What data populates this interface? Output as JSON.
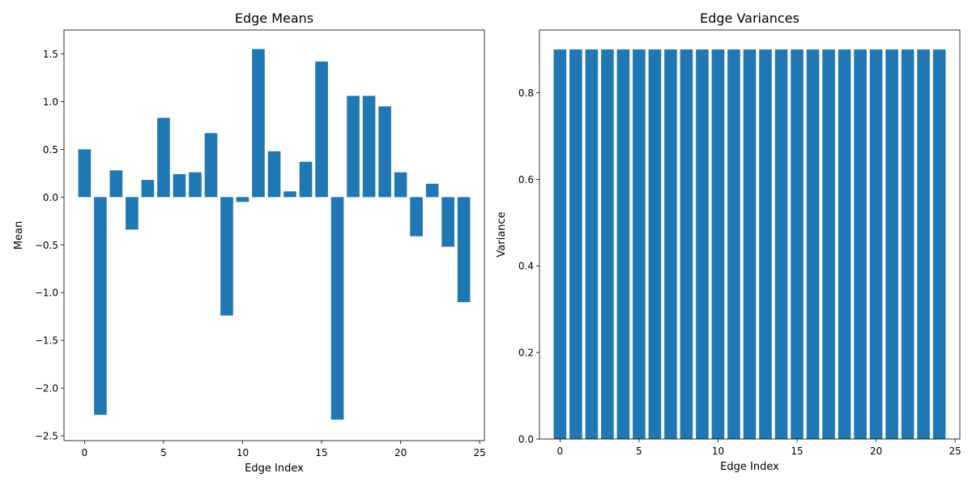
{
  "chart_data": [
    {
      "type": "bar",
      "title": "Edge Means",
      "xlabel": "Edge Index",
      "ylabel": "Mean",
      "x": [
        0,
        1,
        2,
        3,
        4,
        5,
        6,
        7,
        8,
        9,
        10,
        11,
        12,
        13,
        14,
        15,
        16,
        17,
        18,
        19,
        20,
        21,
        22,
        23,
        24
      ],
      "values": [
        0.5,
        -2.28,
        0.28,
        -0.34,
        0.18,
        0.83,
        0.24,
        0.26,
        0.67,
        -1.24,
        -0.05,
        1.55,
        0.48,
        0.06,
        0.37,
        1.42,
        -2.33,
        1.06,
        1.06,
        0.95,
        0.26,
        -0.41,
        0.14,
        -0.52,
        -1.1
      ],
      "xlim": [
        -1.3,
        25.3
      ],
      "ylim": [
        -2.55,
        1.75
      ],
      "xticks": [
        0,
        5,
        10,
        15,
        20,
        25
      ],
      "yticks": [
        -2.5,
        -2.0,
        -1.5,
        -1.0,
        -0.5,
        0.0,
        0.5,
        1.0,
        1.5
      ],
      "ytick_labels": [
        "−2.5",
        "−2.0",
        "−1.5",
        "−1.0",
        "−0.5",
        "0.0",
        "0.5",
        "1.0",
        "1.5"
      ],
      "grid": false,
      "bar_color": "#1f77b4"
    },
    {
      "type": "bar",
      "title": "Edge Variances",
      "xlabel": "Edge Index",
      "ylabel": "Variance",
      "x": [
        0,
        1,
        2,
        3,
        4,
        5,
        6,
        7,
        8,
        9,
        10,
        11,
        12,
        13,
        14,
        15,
        16,
        17,
        18,
        19,
        20,
        21,
        22,
        23,
        24
      ],
      "values": [
        0.9,
        0.9,
        0.9,
        0.9,
        0.9,
        0.9,
        0.9,
        0.9,
        0.9,
        0.9,
        0.9,
        0.9,
        0.9,
        0.9,
        0.9,
        0.9,
        0.9,
        0.9,
        0.9,
        0.9,
        0.9,
        0.9,
        0.9,
        0.9,
        0.9
      ],
      "xlim": [
        -1.3,
        25.3
      ],
      "ylim": [
        0,
        0.945
      ],
      "xticks": [
        0,
        5,
        10,
        15,
        20,
        25
      ],
      "yticks": [
        0.0,
        0.2,
        0.4,
        0.6,
        0.8
      ],
      "ytick_labels": [
        "0.0",
        "0.2",
        "0.4",
        "0.6",
        "0.8"
      ],
      "grid": false,
      "bar_color": "#1f77b4"
    }
  ]
}
